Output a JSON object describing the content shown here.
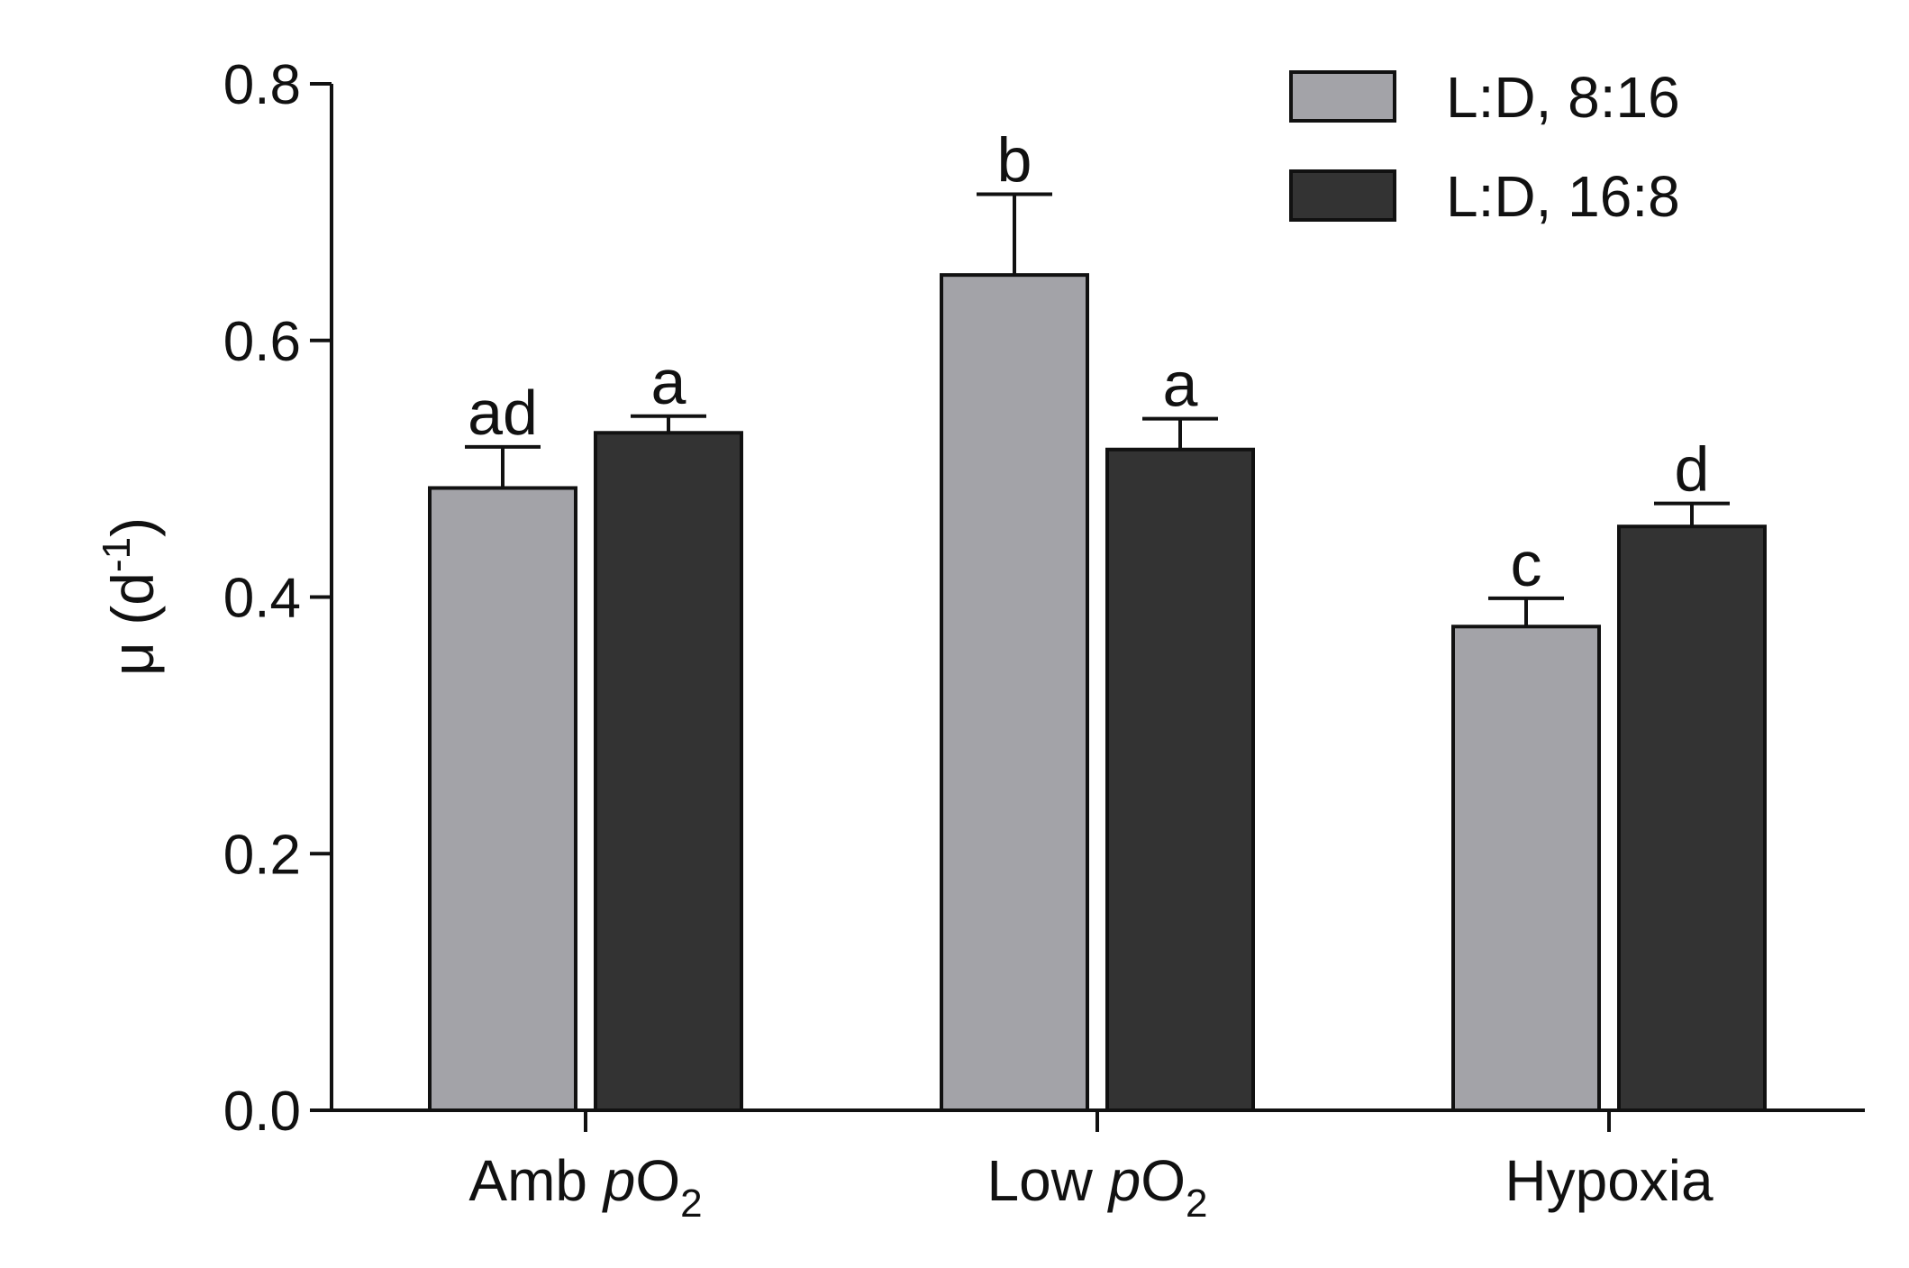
{
  "chart_data": {
    "type": "bar",
    "title": "",
    "ylabel": {
      "symbol": "μ",
      "open": "(",
      "unit": "d",
      "exp": "-1",
      "close": ")"
    },
    "ylim": [
      0,
      0.8
    ],
    "yticks": [
      "0.0",
      "0.2",
      "0.4",
      "0.6",
      "0.8"
    ],
    "categories": [
      {
        "main": "Amb ",
        "italic": "p",
        "formula": "O",
        "sub": "2"
      },
      {
        "main": "Low ",
        "italic": "p",
        "formula": "O",
        "sub": "2"
      },
      {
        "main": "Hypoxia",
        "italic": "",
        "formula": "",
        "sub": ""
      }
    ],
    "series": [
      {
        "name": "L:D, 8:16",
        "color": "#a3a3a8",
        "values": [
          0.485,
          0.651,
          0.377
        ],
        "errors": [
          0.032,
          0.063,
          0.022
        ],
        "labels": [
          "ad",
          "b",
          "c"
        ]
      },
      {
        "name": "L:D, 16:8",
        "color": "#333333",
        "values": [
          0.528,
          0.515,
          0.455
        ],
        "errors": [
          0.013,
          0.024,
          0.018
        ],
        "labels": [
          "a",
          "a",
          "d"
        ]
      }
    ],
    "legend_position": "top-right"
  }
}
